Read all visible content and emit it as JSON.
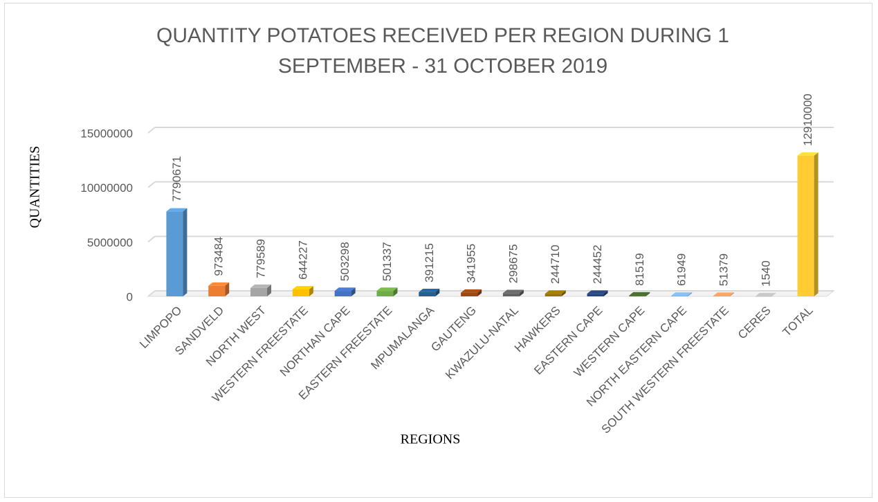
{
  "chart_data": {
    "type": "bar",
    "title": "QUANTITY POTATOES RECEIVED PER REGION DURING  1 SEPTEMBER - 31 OCTOBER 2019",
    "x_label": "REGIONS",
    "y_label": "QUANTITIES",
    "categories": [
      "LIMPOPO",
      "SANDVELD",
      "NORTH WEST",
      "WESTERN FREESTATE",
      "NORTHAN CAPE",
      "EASTERN FREESTATE",
      "MPUMALANGA",
      "GAUTENG",
      "KWAZULU-NATAL",
      "HAWKERS",
      "EASTERN CAPE",
      "WESTERN CAPE",
      "NORTH EASTERN CAPE",
      "SOUTH WESTERN FREESTATE",
      "CERES",
      "TOTAL"
    ],
    "values": [
      7790671,
      973484,
      779589,
      644227,
      503298,
      501337,
      391215,
      341955,
      298675,
      244710,
      244452,
      81519,
      61949,
      51379,
      1540,
      12910000
    ],
    "colors": [
      "#5b9bd5",
      "#ed7d31",
      "#a5a5a5",
      "#ffc000",
      "#4472c4",
      "#70ad47",
      "#255e91",
      "#9e480e",
      "#636363",
      "#997300",
      "#264478",
      "#43682b",
      "#7cafdd",
      "#f1975a",
      "#b7b7b7",
      "#ffcd33"
    ],
    "ylim": [
      0,
      15000000
    ],
    "yticks": [
      0,
      5000000,
      10000000,
      15000000
    ],
    "grid": true
  }
}
